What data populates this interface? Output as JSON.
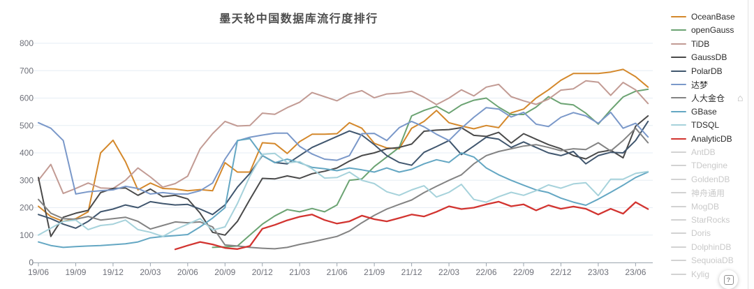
{
  "chart_data": {
    "type": "line",
    "title": "墨天轮中国数据库流行度排行",
    "xlabel": "",
    "ylabel": "",
    "ylim": [
      0,
      800
    ],
    "y_ticks": [
      0,
      100,
      200,
      300,
      400,
      500,
      600,
      700,
      800
    ],
    "grid": "horizontal-only",
    "legend_position": "right",
    "x_is_monthly": true,
    "x_start_label": "19/06",
    "x_tick_labels": [
      "19/06",
      "19/09",
      "19/12",
      "20/03",
      "20/06",
      "20/09",
      "20/12",
      "21/03",
      "21/06",
      "21/09",
      "21/12",
      "22/03",
      "22/06",
      "22/09",
      "22/12",
      "23/03",
      "23/06"
    ],
    "x_tick_every_months": 3,
    "total_months": 50,
    "series": [
      {
        "name": "OceanBase",
        "color": "#d4882b",
        "start_month": 0,
        "values": [
          205,
          168,
          150,
          160,
          185,
          400,
          446,
          368,
          265,
          290,
          270,
          268,
          262,
          266,
          262,
          364,
          330,
          330,
          437,
          434,
          398,
          441,
          468,
          468,
          470,
          510,
          490,
          435,
          418,
          415,
          490,
          515,
          555,
          510,
          498,
          488,
          500,
          492,
          546,
          560,
          600,
          630,
          665,
          690,
          690,
          690,
          695,
          705,
          678,
          640
        ]
      },
      {
        "name": "openGauss",
        "color": "#6ba372",
        "start_month": 14,
        "values": [
          55,
          57,
          60,
          100,
          140,
          170,
          193,
          185,
          197,
          185,
          210,
          300,
          305,
          350,
          385,
          420,
          535,
          555,
          570,
          545,
          575,
          592,
          600,
          567,
          540,
          540,
          567,
          605,
          580,
          575,
          545,
          505,
          557,
          604,
          625,
          632
        ]
      },
      {
        "name": "TiDB",
        "color": "#c29b94",
        "start_month": 0,
        "values": [
          300,
          358,
          252,
          270,
          290,
          272,
          270,
          300,
          345,
          312,
          275,
          288,
          315,
          415,
          470,
          515,
          498,
          500,
          545,
          541,
          565,
          585,
          620,
          605,
          590,
          615,
          627,
          601,
          615,
          618,
          625,
          603,
          576,
          600,
          630,
          608,
          640,
          650,
          605,
          590,
          577,
          596,
          629,
          634,
          663,
          658,
          610,
          657,
          630,
          580
        ]
      },
      {
        "name": "GaussDB",
        "color": "#4a4a4a",
        "start_month": 0,
        "values": [
          310,
          95,
          165,
          180,
          190,
          255,
          270,
          272,
          245,
          268,
          240,
          245,
          232,
          180,
          110,
          100,
          150,
          230,
          307,
          305,
          316,
          307,
          324,
          333,
          345,
          370,
          390,
          400,
          415,
          420,
          432,
          479,
          483,
          485,
          492,
          464,
          460,
          475,
          436,
          470,
          450,
          430,
          415,
          390,
          378,
          402,
          410,
          382,
          497,
          535
        ]
      },
      {
        "name": "PolarDB",
        "color": "#40566e",
        "start_month": 0,
        "values": [
          175,
          160,
          140,
          125,
          150,
          185,
          195,
          210,
          200,
          222,
          215,
          210,
          212,
          195,
          175,
          210,
          275,
          325,
          390,
          365,
          360,
          390,
          420,
          440,
          460,
          480,
          465,
          430,
          390,
          365,
          355,
          402,
          423,
          445,
          394,
          425,
          457,
          450,
          420,
          440,
          420,
          400,
          390,
          405,
          360,
          390,
          402,
          400,
          445,
          515
        ]
      },
      {
        "name": "达梦",
        "color": "#7a98c9",
        "start_month": 0,
        "values": [
          510,
          490,
          445,
          250,
          258,
          262,
          265,
          278,
          270,
          250,
          255,
          250,
          250,
          262,
          290,
          377,
          444,
          457,
          465,
          472,
          472,
          424,
          396,
          377,
          373,
          390,
          470,
          471,
          445,
          492,
          515,
          495,
          468,
          445,
          490,
          530,
          565,
          560,
          531,
          548,
          505,
          496,
          530,
          547,
          535,
          508,
          548,
          490,
          508,
          458
        ]
      },
      {
        "name": "人大金仓",
        "color": "#838383",
        "start_month": 0,
        "values": [
          230,
          180,
          160,
          158,
          168,
          155,
          160,
          165,
          150,
          122,
          135,
          148,
          145,
          148,
          130,
          64,
          60,
          55,
          52,
          50,
          55,
          66,
          75,
          85,
          95,
          115,
          145,
          172,
          195,
          212,
          228,
          255,
          278,
          300,
          320,
          360,
          390,
          405,
          415,
          425,
          430,
          420,
          408,
          415,
          412,
          437,
          407,
          445,
          490,
          437
        ]
      },
      {
        "name": "GBase",
        "color": "#64a7c3",
        "start_month": 0,
        "values": [
          75,
          62,
          55,
          58,
          60,
          62,
          65,
          68,
          75,
          90,
          95,
          98,
          102,
          130,
          162,
          200,
          445,
          452,
          390,
          364,
          377,
          364,
          347,
          342,
          335,
          345,
          338,
          330,
          345,
          330,
          340,
          360,
          375,
          365,
          400,
          385,
          345,
          320,
          300,
          282,
          265,
          255,
          235,
          220,
          209,
          231,
          256,
          282,
          310,
          330
        ]
      },
      {
        "name": "TDSQL",
        "color": "#a6d2db",
        "start_month": 0,
        "values": [
          100,
          125,
          150,
          155,
          120,
          135,
          140,
          155,
          120,
          110,
          95,
          120,
          140,
          160,
          118,
          130,
          215,
          315,
          395,
          398,
          364,
          368,
          342,
          308,
          310,
          330,
          300,
          288,
          258,
          245,
          265,
          280,
          239,
          256,
          285,
          230,
          220,
          240,
          256,
          245,
          262,
          283,
          271,
          287,
          291,
          244,
          304,
          304,
          325,
          332
        ]
      },
      {
        "name": "AnalyticDB",
        "color": "#d23430",
        "start_month": 11,
        "values": [
          48,
          62,
          75,
          66,
          53,
          49,
          60,
          123,
          137,
          154,
          167,
          175,
          155,
          142,
          150,
          171,
          158,
          150,
          162,
          175,
          168,
          185,
          205,
          195,
          200,
          212,
          222,
          205,
          212,
          190,
          209,
          196,
          204,
          196,
          175,
          196,
          178,
          220,
          195
        ]
      }
    ],
    "inactive_legend": [
      "AntDB",
      "TDengine",
      "GoldenDB",
      "神舟通用",
      "MogDB",
      "StarRocks",
      "Doris",
      "DolphinDB",
      "SequoiaDB",
      "Kylig"
    ]
  },
  "colors": {
    "gridline": "#e6edf4",
    "axis": "#9aa4ae",
    "axis_label": "#6e7079",
    "title": "#4d4d4d",
    "inactive_swatch": "#d2d2d2",
    "inactive_label": "#c9c9c9"
  },
  "floating": {
    "help_glyph": "?",
    "home_glyph": "⌂"
  }
}
